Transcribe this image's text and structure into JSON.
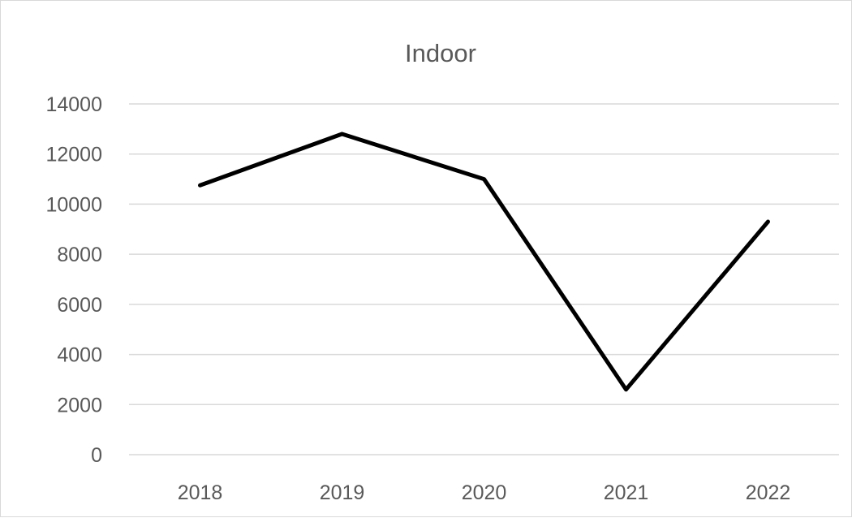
{
  "chart_data": {
    "type": "line",
    "title": "Indoor",
    "xlabel": "",
    "ylabel": "",
    "categories": [
      "2018",
      "2019",
      "2020",
      "2021",
      "2022"
    ],
    "series": [
      {
        "values": [
          10750,
          12800,
          11000,
          2600,
          9300
        ],
        "color": "#000000"
      }
    ],
    "ylim": [
      0,
      14000
    ],
    "yticks": [
      0,
      2000,
      4000,
      6000,
      8000,
      10000,
      12000,
      14000
    ],
    "grid": true,
    "legend": "none"
  }
}
